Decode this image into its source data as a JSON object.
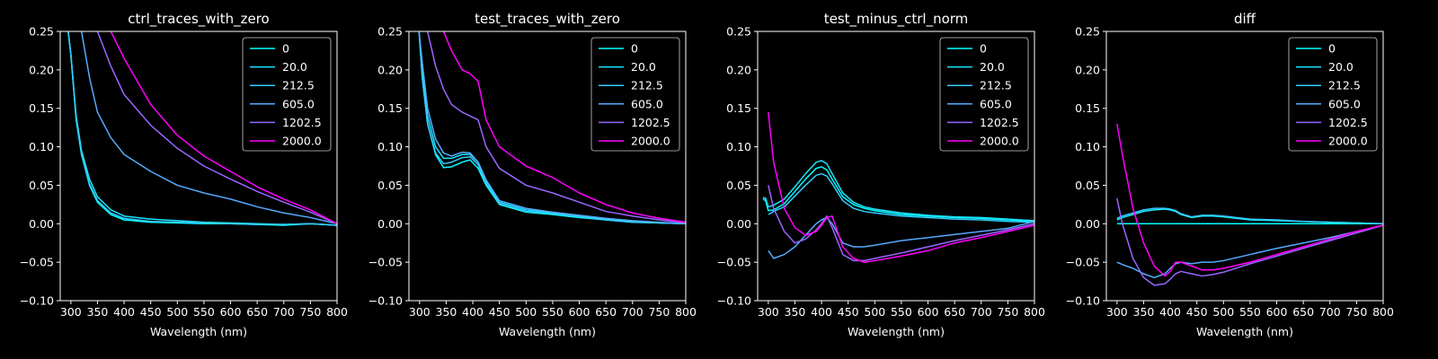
{
  "figure": {
    "background": "#000000",
    "foreground": "#ffffff"
  },
  "legend": {
    "entries": [
      "0",
      "20.0",
      "212.5",
      "605.0",
      "1202.5",
      "2000.0"
    ],
    "colors": [
      "#00ffff",
      "#1ae5ff",
      "#33ccff",
      "#55aaff",
      "#9966ff",
      "#ff00ff"
    ],
    "placement": "upper-right"
  },
  "chart_data": [
    {
      "type": "line",
      "title": "ctrl_traces_with_zero",
      "xlabel": "Wavelength (nm)",
      "xlim": [
        280,
        800
      ],
      "ylim": [
        -0.1,
        0.25
      ],
      "xticks": [
        "300",
        "350",
        "400",
        "450",
        "500",
        "550",
        "600",
        "650",
        "700",
        "750",
        "800"
      ],
      "yticks": [
        "−0.10",
        "−0.05",
        "0.00",
        "0.05",
        "0.10",
        "0.15",
        "0.20",
        "0.25"
      ],
      "x": [
        295,
        300,
        310,
        320,
        335,
        350,
        375,
        400,
        450,
        500,
        550,
        600,
        650,
        700,
        750,
        800
      ],
      "series": [
        {
          "name": "0",
          "values": [
            0.25,
            0.22,
            0.135,
            0.09,
            0.05,
            0.028,
            0.012,
            0.005,
            0.002,
            0.001,
            0.0,
            0.0,
            -0.001,
            -0.002,
            0.0,
            -0.002
          ]
        },
        {
          "name": "20.0",
          "values": [
            0.25,
            0.22,
            0.14,
            0.095,
            0.058,
            0.035,
            0.018,
            0.01,
            0.006,
            0.004,
            0.002,
            0.001,
            0.0,
            -0.001,
            0.0,
            -0.002
          ]
        },
        {
          "name": "212.5",
          "values": [
            0.25,
            0.22,
            0.135,
            0.09,
            0.052,
            0.03,
            0.014,
            0.007,
            0.003,
            0.002,
            0.001,
            0.0,
            -0.001,
            -0.001,
            0.0,
            -0.002
          ]
        },
        {
          "name": "605.0",
          "values": [
            null,
            null,
            null,
            0.25,
            0.19,
            0.145,
            0.112,
            0.09,
            0.068,
            0.05,
            0.04,
            0.032,
            0.022,
            0.014,
            0.008,
            0.0
          ]
        },
        {
          "name": "1202.5",
          "values": [
            null,
            null,
            null,
            null,
            null,
            0.25,
            0.205,
            0.168,
            0.128,
            0.098,
            0.075,
            0.058,
            0.042,
            0.028,
            0.015,
            0.0
          ]
        },
        {
          "name": "2000.0",
          "values": [
            null,
            null,
            null,
            null,
            null,
            null,
            0.25,
            0.215,
            0.155,
            0.115,
            0.088,
            0.068,
            0.048,
            0.032,
            0.018,
            0.0
          ]
        }
      ]
    },
    {
      "type": "line",
      "title": "test_traces_with_zero",
      "xlabel": "Wavelength (nm)",
      "xlim": [
        280,
        800
      ],
      "ylim": [
        -0.1,
        0.25
      ],
      "xticks": [
        "300",
        "350",
        "400",
        "450",
        "500",
        "550",
        "600",
        "650",
        "700",
        "750",
        "800"
      ],
      "yticks": [
        "−0.10",
        "−0.05",
        "0.00",
        "0.05",
        "0.10",
        "0.15",
        "0.20",
        "0.25"
      ],
      "x": [
        299,
        305,
        315,
        330,
        345,
        360,
        380,
        395,
        410,
        425,
        450,
        500,
        550,
        600,
        650,
        700,
        750,
        800
      ],
      "series": [
        {
          "name": "0",
          "values": [
            0.25,
            0.19,
            0.13,
            0.09,
            0.073,
            0.074,
            0.08,
            0.083,
            0.072,
            0.05,
            0.025,
            0.015,
            0.012,
            0.008,
            0.005,
            0.002,
            0.001,
            0.0
          ]
        },
        {
          "name": "20.0",
          "values": [
            0.25,
            0.2,
            0.14,
            0.1,
            0.085,
            0.085,
            0.09,
            0.09,
            0.08,
            0.055,
            0.028,
            0.018,
            0.014,
            0.01,
            0.006,
            0.003,
            0.001,
            0.0
          ]
        },
        {
          "name": "212.5",
          "values": [
            0.25,
            0.19,
            0.13,
            0.092,
            0.078,
            0.08,
            0.086,
            0.087,
            0.077,
            0.052,
            0.026,
            0.016,
            0.013,
            0.009,
            0.005,
            0.002,
            0.001,
            0.0
          ]
        },
        {
          "name": "605.0",
          "values": [
            0.25,
            0.21,
            0.15,
            0.11,
            0.092,
            0.088,
            0.093,
            0.092,
            0.08,
            0.057,
            0.03,
            0.02,
            0.015,
            0.011,
            0.007,
            0.004,
            0.002,
            0.0
          ]
        },
        {
          "name": "1202.5",
          "values": [
            null,
            null,
            0.25,
            0.205,
            0.175,
            0.155,
            0.145,
            0.14,
            0.135,
            0.1,
            0.072,
            0.05,
            0.04,
            0.028,
            0.016,
            0.01,
            0.005,
            0.001
          ]
        },
        {
          "name": "2000.0",
          "values": [
            null,
            null,
            null,
            null,
            0.25,
            0.225,
            0.2,
            0.195,
            0.185,
            0.135,
            0.1,
            0.075,
            0.06,
            0.04,
            0.025,
            0.014,
            0.007,
            0.002
          ]
        }
      ]
    },
    {
      "type": "line",
      "title": "test_minus_ctrl_norm",
      "xlabel": "Wavelength (nm)",
      "xlim": [
        280,
        800
      ],
      "ylim": [
        -0.1,
        0.25
      ],
      "xticks": [
        "300",
        "350",
        "400",
        "450",
        "500",
        "550",
        "600",
        "650",
        "700",
        "750",
        "800"
      ],
      "yticks": [
        "−0.10",
        "−0.05",
        "0.00",
        "0.05",
        "0.10",
        "0.15",
        "0.20",
        "0.25"
      ],
      "x": [
        290,
        295,
        300,
        310,
        330,
        350,
        370,
        390,
        400,
        410,
        420,
        440,
        460,
        480,
        500,
        550,
        600,
        650,
        700,
        750,
        800
      ],
      "series": [
        {
          "name": "0",
          "values": [
            0.032,
            0.03,
            0.017,
            0.018,
            0.026,
            0.042,
            0.058,
            0.072,
            0.074,
            0.07,
            0.058,
            0.035,
            0.025,
            0.02,
            0.017,
            0.012,
            0.01,
            0.008,
            0.007,
            0.005,
            0.003
          ]
        },
        {
          "name": "20.0",
          "values": [
            0.034,
            0.033,
            0.022,
            0.024,
            0.032,
            0.048,
            0.065,
            0.08,
            0.082,
            0.078,
            0.065,
            0.04,
            0.028,
            0.022,
            0.019,
            0.014,
            0.011,
            0.009,
            0.008,
            0.006,
            0.004
          ]
        },
        {
          "name": "212.5",
          "values": [
            null,
            null,
            0.012,
            0.016,
            0.022,
            0.036,
            0.05,
            0.063,
            0.065,
            0.062,
            0.052,
            0.03,
            0.02,
            0.016,
            0.014,
            0.01,
            0.008,
            0.006,
            0.005,
            0.003,
            0.002
          ]
        },
        {
          "name": "605.0",
          "values": [
            null,
            null,
            -0.035,
            -0.045,
            -0.04,
            -0.03,
            -0.015,
            0.0,
            0.005,
            0.008,
            0.0,
            -0.025,
            -0.03,
            -0.03,
            -0.028,
            -0.022,
            -0.018,
            -0.014,
            -0.01,
            -0.006,
            0.003
          ]
        },
        {
          "name": "1202.5",
          "values": [
            null,
            null,
            0.05,
            0.02,
            -0.01,
            -0.025,
            -0.02,
            -0.008,
            0.0,
            0.01,
            -0.005,
            -0.04,
            -0.048,
            -0.048,
            -0.045,
            -0.038,
            -0.03,
            -0.022,
            -0.015,
            -0.008,
            0.0
          ]
        },
        {
          "name": "2000.0",
          "values": [
            null,
            null,
            0.145,
            0.08,
            0.02,
            -0.005,
            -0.015,
            -0.01,
            -0.002,
            0.008,
            0.01,
            -0.03,
            -0.045,
            -0.05,
            -0.048,
            -0.042,
            -0.035,
            -0.025,
            -0.018,
            -0.01,
            -0.002
          ]
        }
      ]
    },
    {
      "type": "line",
      "title": "diff",
      "xlabel": "Wavelength (nm)",
      "xlim": [
        280,
        800
      ],
      "ylim": [
        -0.1,
        0.25
      ],
      "xticks": [
        "300",
        "350",
        "400",
        "450",
        "500",
        "550",
        "600",
        "650",
        "700",
        "750",
        "800"
      ],
      "yticks": [
        "−0.10",
        "−0.05",
        "0.00",
        "0.05",
        "0.10",
        "0.15",
        "0.20",
        "0.25"
      ],
      "x": [
        300,
        310,
        330,
        350,
        370,
        390,
        400,
        410,
        420,
        440,
        460,
        480,
        500,
        550,
        600,
        650,
        700,
        750,
        800
      ],
      "series": [
        {
          "name": "0",
          "values": [
            0.0,
            0.0,
            0.0,
            0.0,
            0.0,
            0.0,
            0.0,
            0.0,
            0.0,
            0.0,
            0.0,
            0.0,
            0.0,
            0.0,
            0.0,
            0.0,
            0.0,
            0.0,
            0.0
          ]
        },
        {
          "name": "20.0",
          "values": [
            0.005,
            0.008,
            0.012,
            0.016,
            0.018,
            0.019,
            0.018,
            0.016,
            0.012,
            0.008,
            0.01,
            0.01,
            0.009,
            0.005,
            0.004,
            0.003,
            0.002,
            0.001,
            0.0
          ]
        },
        {
          "name": "212.5",
          "values": [
            0.007,
            0.01,
            0.014,
            0.018,
            0.02,
            0.02,
            0.019,
            0.017,
            0.013,
            0.009,
            0.011,
            0.011,
            0.01,
            0.006,
            0.005,
            0.003,
            0.002,
            0.001,
            0.0
          ]
        },
        {
          "name": "605.0",
          "values": [
            -0.05,
            -0.053,
            -0.058,
            -0.065,
            -0.07,
            -0.065,
            -0.058,
            -0.052,
            -0.05,
            -0.052,
            -0.05,
            -0.05,
            -0.048,
            -0.04,
            -0.032,
            -0.025,
            -0.018,
            -0.01,
            -0.002
          ]
        },
        {
          "name": "1202.5",
          "values": [
            0.033,
            0.0,
            -0.045,
            -0.07,
            -0.08,
            -0.078,
            -0.072,
            -0.065,
            -0.062,
            -0.065,
            -0.068,
            -0.066,
            -0.063,
            -0.052,
            -0.042,
            -0.032,
            -0.022,
            -0.012,
            -0.002
          ]
        },
        {
          "name": "2000.0",
          "values": [
            0.13,
            0.09,
            0.02,
            -0.025,
            -0.055,
            -0.068,
            -0.062,
            -0.05,
            -0.05,
            -0.055,
            -0.06,
            -0.06,
            -0.058,
            -0.05,
            -0.04,
            -0.03,
            -0.02,
            -0.01,
            -0.002
          ]
        }
      ]
    }
  ]
}
